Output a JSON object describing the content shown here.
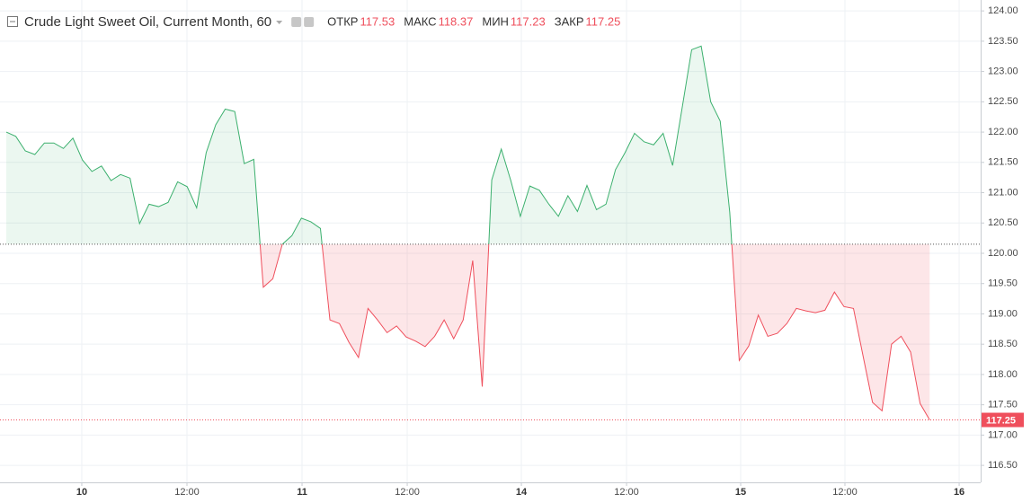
{
  "chart_data": {
    "type": "baseline",
    "title": "Crude Light Sweet Oil, Current Month, 60",
    "legend_items": [
      {
        "label": "ОТКР",
        "value": 117.53
      },
      {
        "label": "МАКС",
        "value": 118.37
      },
      {
        "label": "МИН",
        "value": 117.23
      },
      {
        "label": "ЗАКР",
        "value": 117.25
      }
    ],
    "x": [
      0,
      1,
      2,
      3,
      4,
      5,
      6,
      7,
      8,
      9,
      10,
      11,
      12,
      13,
      14,
      15,
      16,
      17,
      18,
      19,
      20,
      21,
      22,
      23,
      24,
      25,
      26,
      27,
      28,
      29,
      30,
      31,
      32,
      33,
      34,
      35,
      36,
      37,
      38,
      39,
      40,
      41,
      42,
      43,
      44,
      45,
      46,
      47,
      48,
      49,
      50,
      51,
      52,
      53,
      54,
      55,
      56,
      57,
      58,
      59,
      60,
      61,
      62,
      63,
      64,
      65,
      66,
      67,
      68,
      69,
      70,
      71,
      72,
      73,
      74,
      75,
      76,
      77,
      78,
      79,
      80,
      81,
      82,
      83,
      84,
      85,
      86,
      87,
      88,
      89,
      90,
      91,
      92,
      93,
      94,
      95,
      96,
      97
    ],
    "values": [
      122.0,
      121.93,
      121.69,
      121.63,
      121.82,
      121.82,
      121.73,
      121.9,
      121.54,
      121.35,
      121.44,
      121.2,
      121.3,
      121.24,
      120.49,
      120.81,
      120.77,
      120.84,
      121.18,
      121.1,
      120.75,
      121.66,
      122.12,
      122.38,
      122.34,
      121.48,
      121.55,
      119.44,
      119.58,
      120.15,
      120.29,
      120.58,
      120.52,
      120.41,
      118.9,
      118.84,
      118.53,
      118.28,
      119.09,
      118.9,
      118.69,
      118.8,
      118.62,
      118.55,
      118.46,
      118.63,
      118.9,
      118.59,
      118.9,
      119.88,
      117.8,
      121.21,
      121.72,
      121.2,
      120.61,
      121.11,
      121.04,
      120.81,
      120.61,
      120.95,
      120.69,
      121.12,
      120.72,
      120.81,
      121.38,
      121.66,
      121.98,
      121.84,
      121.79,
      121.98,
      121.45,
      122.4,
      123.36,
      123.42,
      122.5,
      122.18,
      120.68,
      118.23,
      118.47,
      118.98,
      118.63,
      118.68,
      118.84,
      119.09,
      119.05,
      119.02,
      119.06,
      119.36,
      119.12,
      119.09,
      118.31,
      117.54,
      117.4,
      118.5,
      118.63,
      118.37,
      117.52,
      117.25
    ],
    "baseline": 120.15,
    "up_color": "#3cb06e",
    "down_color": "#ef4f5c",
    "last_price": 117.25,
    "last_price_color": "#ef4f5c",
    "xlim": [
      -0.66,
      102.36
    ],
    "xticks": [
      {
        "value": 7.93,
        "label": "10"
      },
      {
        "value": 18.98,
        "label": "12:00"
      },
      {
        "value": 31.07,
        "label": "11"
      },
      {
        "value": 42.12,
        "label": "12:00"
      },
      {
        "value": 54.11,
        "label": "14"
      },
      {
        "value": 65.16,
        "label": "12:00"
      },
      {
        "value": 77.15,
        "label": "15"
      },
      {
        "value": 88.1,
        "label": "12:00"
      },
      {
        "value": 100.1,
        "label": "16"
      }
    ],
    "ylim": [
      116.22,
      124.18
    ],
    "yticks": [
      {
        "value": 116.5,
        "label": "116.50"
      },
      {
        "value": 117,
        "label": "117.00"
      },
      {
        "value": 117.5,
        "label": "117.50"
      },
      {
        "value": 118,
        "label": "118.00"
      },
      {
        "value": 118.5,
        "label": "118.50"
      },
      {
        "value": 119,
        "label": "119.00"
      },
      {
        "value": 119.5,
        "label": "119.50"
      },
      {
        "value": 120,
        "label": "120.00"
      },
      {
        "value": 120.5,
        "label": "120.50"
      },
      {
        "value": 121,
        "label": "121.00"
      },
      {
        "value": 121.5,
        "label": "121.50"
      },
      {
        "value": 122,
        "label": "122.00"
      },
      {
        "value": 122.5,
        "label": "122.50"
      },
      {
        "value": 123,
        "label": "123.00"
      },
      {
        "value": 123.5,
        "label": "123.50"
      },
      {
        "value": 124,
        "label": "124.00"
      }
    ],
    "grid": true
  }
}
